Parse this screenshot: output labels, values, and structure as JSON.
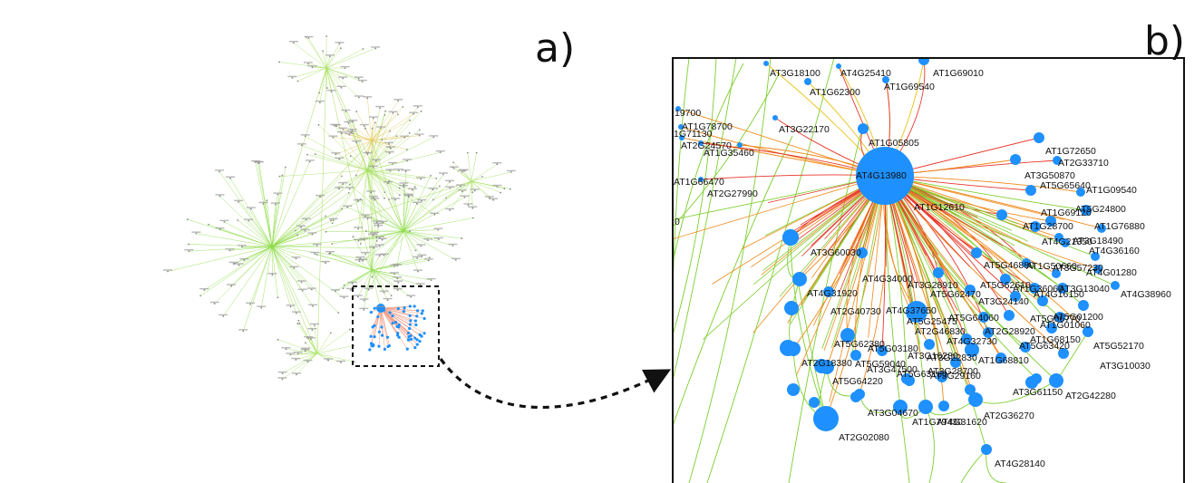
{
  "panels": {
    "a": {
      "label": "a)"
    },
    "b": {
      "label": "b)"
    }
  },
  "colors": {
    "node": "#1e90ff",
    "edge_green": "#7ccf2e",
    "edge_yellow": "#e8c21a",
    "edge_orange": "#f08a1a",
    "edge_red": "#e8362a",
    "overview_edge": "#9be05a",
    "arrow": "#111111"
  },
  "hub": {
    "label": "AT4G13980"
  },
  "labels": [
    "AT3G18100",
    "AT4G25410",
    "AT1G69010",
    "AT1G62300",
    "AT1G69540",
    "19700",
    "AT1G78700",
    "1G71130",
    "AT3G22170",
    "AT2G24570",
    "AT1G35460",
    "AT1G05805",
    "AT1G66470",
    "AT2G27990",
    "0",
    "AT1G72650",
    "AT2G33710",
    "AT3G50870",
    "AT5G65640",
    "AT1G09540",
    "AT1G12610",
    "AT1G69120",
    "AT5G24800",
    "AT1G28700",
    "AT1G76880",
    "AT4G21350",
    "AT3G18490",
    "AT4G36160",
    "AT3G60030",
    "AT5G46880",
    "AT1G50660",
    "AT3G57230",
    "AT4G01280",
    "AT4G34000",
    "AT3G28910",
    "AT5G62610",
    "AT1G36060",
    "AT3G13040",
    "AT4G31920",
    "AT5G62470",
    "AT3G24140",
    "AT4G16150",
    "AT4G38960",
    "AT2G40730",
    "AT4G37650",
    "AT5G25475",
    "AT5G64060",
    "AT5G06770",
    "AT5G01200",
    "AT1G01060",
    "AT2G46830",
    "AT2G28920",
    "AT1G68150",
    "AT5G52170",
    "AT5G63420",
    "AT4G32730",
    "AT5G62380",
    "AT5G03180",
    "AT3G16280",
    "AT2G18380",
    "AT5G59040",
    "AT3G22830",
    "AT1G68810",
    "AT3G10030",
    "AT3G47500",
    "AT3G28700",
    "AT5G64220",
    "AT5G63160",
    "AT3G29160",
    "AT3G61150",
    "AT2G42280",
    "AT3G04670",
    "AT2G36270",
    "AT1G79430",
    "AT4G31620",
    "AT2G02080",
    "AT4G28140"
  ]
}
